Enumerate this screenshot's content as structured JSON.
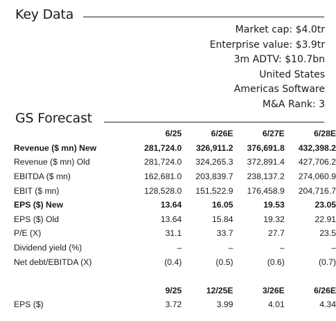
{
  "key_data": {
    "title": "Key Data",
    "lines": [
      "Market cap: $4.0tr",
      "Enterprise value: $3.9tr",
      "3m ADTV: $10.7bn",
      "United States",
      "Americas Software",
      "M&A Rank: 3"
    ]
  },
  "forecast": {
    "title": "GS Forecast",
    "headers": [
      "6/25",
      "6/26E",
      "6/27E",
      "6/28E"
    ],
    "rows": [
      {
        "label": "Revenue ($ mn) New",
        "values": [
          "281,724.0",
          "326,911.2",
          "376,691.8",
          "432,398.2"
        ]
      },
      {
        "label": "Revenue ($ mn) Old",
        "values": [
          "281,724.0",
          "324,265.3",
          "372,891.4",
          "427,706.2"
        ]
      },
      {
        "label": "EBITDA ($ mn)",
        "values": [
          "162,681.0",
          "203,839.7",
          "238,137.2",
          "274,060.9"
        ]
      },
      {
        "label": "EBIT ($ mn)",
        "values": [
          "128,528.0",
          "151,522.9",
          "176,458.9",
          "204,716.7"
        ]
      },
      {
        "label": "EPS ($) New",
        "values": [
          "13.64",
          "16.05",
          "19.53",
          "23.05"
        ]
      },
      {
        "label": "EPS ($) Old",
        "values": [
          "13.64",
          "15.84",
          "19.32",
          "22.91"
        ]
      },
      {
        "label": "P/E (X)",
        "values": [
          "31.1",
          "33.7",
          "27.7",
          "23.5"
        ]
      },
      {
        "label": "Dividend yield (%)",
        "values": [
          "–",
          "–",
          "–",
          "–"
        ]
      },
      {
        "label": "Net debt/EBITDA (X)",
        "values": [
          "(0.4)",
          "(0.5)",
          "(0.6)",
          "(0.7)"
        ]
      }
    ],
    "quarterly_headers": [
      "9/25",
      "12/25E",
      "3/26E",
      "6/26E"
    ],
    "quarterly_rows": [
      {
        "label": "EPS ($)",
        "values": [
          "3.72",
          "3.99",
          "4.01",
          "4.34"
        ]
      }
    ]
  }
}
